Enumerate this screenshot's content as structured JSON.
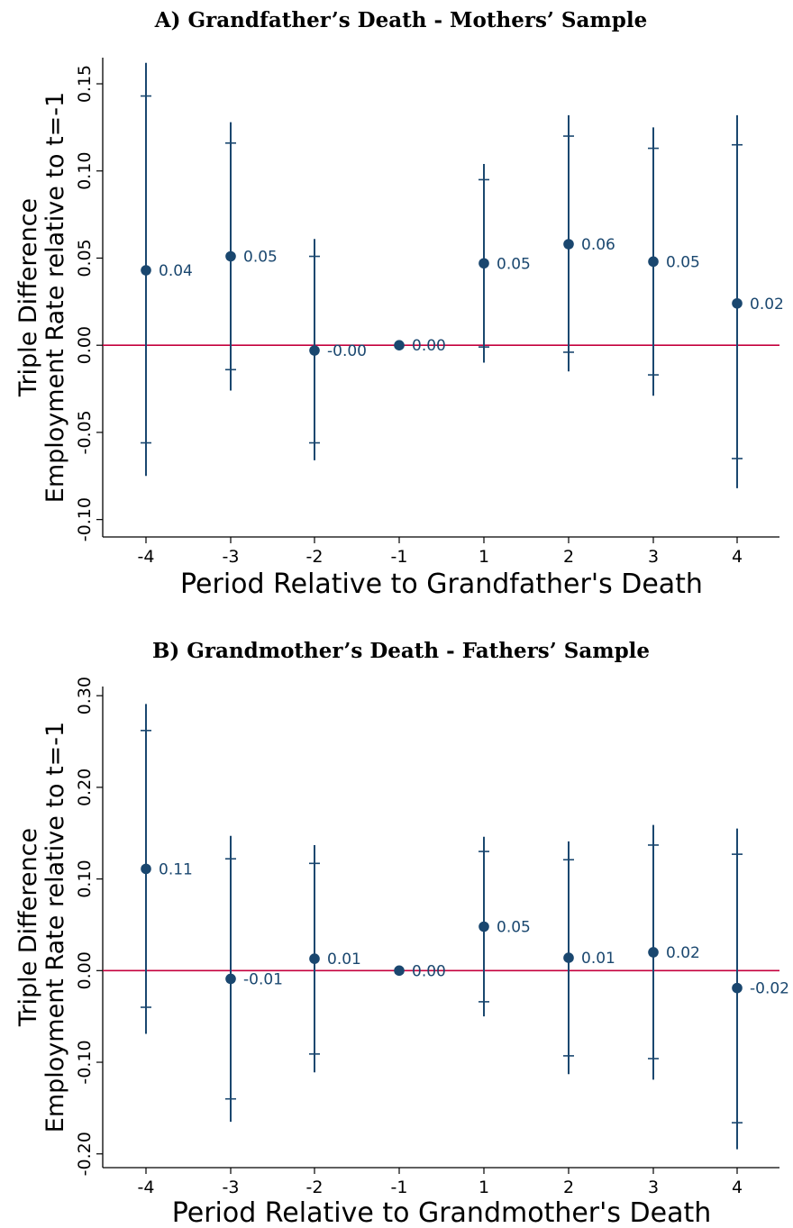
{
  "colors": {
    "series": "#1a476f",
    "refline": "#c4003d",
    "axis": "#000000"
  },
  "chart_data": [
    {
      "type": "scatter",
      "title": "A) Grandfather’s Death - Mothers’ Sample",
      "xlabel": "Period Relative to Grandfather's Death",
      "ylabel": [
        "Triple Difference",
        "Employment Rate relative to t=-1"
      ],
      "categories": [
        "-4",
        "-3",
        "-2",
        "-1",
        "1",
        "2",
        "3",
        "4"
      ],
      "ylim": [
        -0.11,
        0.165
      ],
      "yticks": [
        -0.1,
        -0.05,
        0.0,
        0.05,
        0.1,
        0.15
      ],
      "ytick_labels": [
        "-0.10",
        "-0.05",
        "0.00",
        "0.05",
        "0.10",
        "0.15"
      ],
      "reference_line": 0,
      "points": [
        {
          "x": "-4",
          "y": 0.043,
          "label": "0.04",
          "ci90": [
            -0.056,
            0.143
          ],
          "ci95": [
            -0.075,
            0.162
          ]
        },
        {
          "x": "-3",
          "y": 0.051,
          "label": "0.05",
          "ci90": [
            -0.014,
            0.116
          ],
          "ci95": [
            -0.026,
            0.128
          ]
        },
        {
          "x": "-2",
          "y": -0.003,
          "label": "-0.00",
          "ci90": [
            -0.056,
            0.051
          ],
          "ci95": [
            -0.066,
            0.061
          ]
        },
        {
          "x": "-1",
          "y": 0.0,
          "label": "0.00",
          "ci90": null,
          "ci95": null
        },
        {
          "x": "1",
          "y": 0.047,
          "label": "0.05",
          "ci90": [
            -0.001,
            0.095
          ],
          "ci95": [
            -0.01,
            0.104
          ]
        },
        {
          "x": "2",
          "y": 0.058,
          "label": "0.06",
          "ci90": [
            -0.004,
            0.12
          ],
          "ci95": [
            -0.015,
            0.132
          ]
        },
        {
          "x": "3",
          "y": 0.048,
          "label": "0.05",
          "ci90": [
            -0.017,
            0.113
          ],
          "ci95": [
            -0.029,
            0.125
          ]
        },
        {
          "x": "4",
          "y": 0.024,
          "label": "0.02",
          "ci90": [
            -0.065,
            0.115
          ],
          "ci95": [
            -0.082,
            0.132
          ]
        }
      ]
    },
    {
      "type": "scatter",
      "title": "B) Grandmother’s Death - Fathers’ Sample",
      "xlabel": "Period Relative to Grandmother's Death",
      "ylabel": [
        "Triple Difference",
        "Employment Rate relative to t=-1"
      ],
      "categories": [
        "-4",
        "-3",
        "-2",
        "-1",
        "1",
        "2",
        "3",
        "4"
      ],
      "ylim": [
        -0.215,
        0.31
      ],
      "yticks": [
        -0.2,
        -0.1,
        0.0,
        0.1,
        0.2,
        0.3
      ],
      "ytick_labels": [
        "-0.20",
        "-0.10",
        "0.00",
        "0.10",
        "0.20",
        "0.30"
      ],
      "reference_line": 0,
      "points": [
        {
          "x": "-4",
          "y": 0.111,
          "label": "0.11",
          "ci90": [
            -0.04,
            0.262
          ],
          "ci95": [
            -0.069,
            0.291
          ]
        },
        {
          "x": "-3",
          "y": -0.009,
          "label": "-0.01",
          "ci90": [
            -0.14,
            0.122
          ],
          "ci95": [
            -0.165,
            0.147
          ]
        },
        {
          "x": "-2",
          "y": 0.013,
          "label": "0.01",
          "ci90": [
            -0.091,
            0.117
          ],
          "ci95": [
            -0.111,
            0.137
          ]
        },
        {
          "x": "-1",
          "y": 0.0,
          "label": "0.00",
          "ci90": null,
          "ci95": null
        },
        {
          "x": "1",
          "y": 0.048,
          "label": "0.05",
          "ci90": [
            -0.034,
            0.13
          ],
          "ci95": [
            -0.05,
            0.146
          ]
        },
        {
          "x": "2",
          "y": 0.014,
          "label": "0.01",
          "ci90": [
            -0.093,
            0.121
          ],
          "ci95": [
            -0.113,
            0.141
          ]
        },
        {
          "x": "3",
          "y": 0.02,
          "label": "0.02",
          "ci90": [
            -0.096,
            0.137
          ],
          "ci95": [
            -0.119,
            0.159
          ]
        },
        {
          "x": "4",
          "y": -0.019,
          "label": "-0.02",
          "ci90": [
            -0.166,
            0.127
          ],
          "ci95": [
            -0.195,
            0.155
          ]
        }
      ]
    }
  ]
}
